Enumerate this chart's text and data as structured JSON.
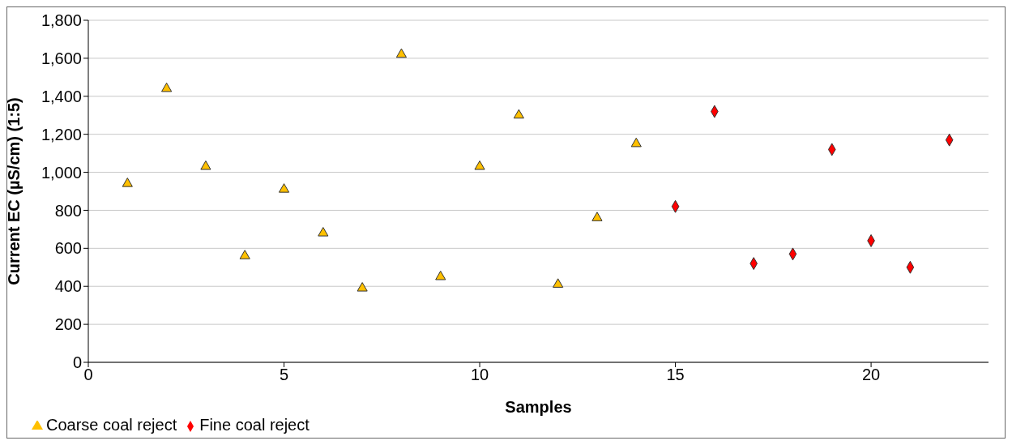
{
  "chart_data": {
    "type": "scatter",
    "xlabel": "Samples",
    "ylabel": "Current EC (µS/cm) (1:5)",
    "xlim": [
      0,
      23
    ],
    "xticks": [
      0,
      5,
      10,
      15,
      20
    ],
    "ylim": [
      0,
      1800
    ],
    "yticks": [
      0,
      200,
      400,
      600,
      800,
      {
        "value": 1000,
        "label": "1,000"
      },
      {
        "value": 1200,
        "label": "1,200"
      },
      {
        "value": 1400,
        "label": "1,400"
      },
      {
        "value": 1600,
        "label": "1,600"
      },
      {
        "value": 1800,
        "label": "1,800"
      }
    ],
    "grid": "y",
    "legend": "bottom left",
    "series": [
      {
        "name": "Coarse coal reject",
        "color": "#ffc000",
        "marker": "triangle",
        "x": [
          1,
          2,
          3,
          4,
          5,
          6,
          7,
          8,
          9,
          10,
          11,
          12,
          13,
          14
        ],
        "values": [
          940,
          1440,
          1030,
          560,
          910,
          680,
          390,
          1620,
          450,
          1030,
          1300,
          410,
          760,
          1150
        ]
      },
      {
        "name": "Fine coal reject",
        "color": "#ff0000",
        "marker": "diamond",
        "x": [
          15,
          16,
          17,
          18,
          19,
          20,
          21,
          22
        ],
        "values": [
          820,
          1320,
          520,
          570,
          1120,
          640,
          500,
          1170
        ]
      }
    ]
  }
}
